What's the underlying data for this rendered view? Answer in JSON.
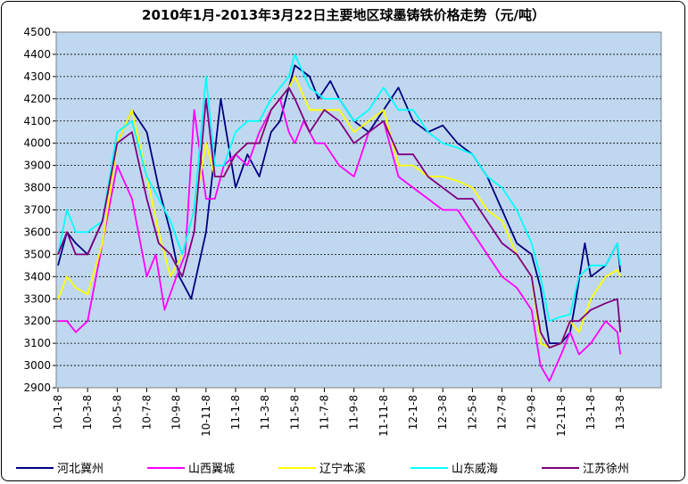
{
  "chart_data": {
    "type": "line",
    "title": "2010年1月-2013年3月22日主要地区球墨铸铁价格走势（元/吨）",
    "ylim": [
      2900,
      4500
    ],
    "yticks": [
      2900,
      3000,
      3100,
      3200,
      3300,
      3400,
      3500,
      3600,
      3700,
      3800,
      3900,
      4000,
      4100,
      4200,
      4300,
      4400,
      4500
    ],
    "xtick_labels": [
      "10-1-8",
      "10-3-8",
      "10-5-8",
      "10-7-8",
      "10-9-8",
      "10-11-8",
      "11-1-8",
      "11-3-8",
      "11-5-8",
      "11-7-8",
      "11-9-8",
      "11-11-8",
      "12-1-8",
      "12-3-8",
      "12-5-8",
      "12-7-8",
      "12-9-8",
      "12-11-8",
      "13-1-8",
      "13-3-8"
    ],
    "grid": true,
    "legend_position": "bottom",
    "background_color": "#c0d8ef",
    "series": [
      {
        "name": "河北冀州",
        "color": "#000080",
        "x": [
          0,
          0.3,
          0.6,
          1.0,
          1.5,
          2.0,
          2.5,
          3.0,
          3.4,
          3.8,
          4.1,
          4.5,
          5.0,
          5.5,
          6.0,
          6.4,
          6.8,
          7.2,
          7.5,
          7.8,
          8.0,
          8.5,
          8.8,
          9.2,
          9.5,
          10.0,
          10.5,
          11.0,
          11.5,
          12.0,
          12.5,
          13.0,
          13.5,
          14.0,
          14.5,
          15.0,
          15.5,
          16.0,
          16.3,
          16.6,
          17.0,
          17.3,
          17.5,
          17.8,
          18.0,
          18.5,
          18.9,
          19.0
        ],
        "values": [
          3450,
          3600,
          3550,
          3500,
          3650,
          4000,
          4150,
          4050,
          3800,
          3600,
          3400,
          3300,
          3600,
          4200,
          3800,
          3950,
          3850,
          4050,
          4100,
          4250,
          4350,
          4300,
          4200,
          4280,
          4200,
          4100,
          4050,
          4150,
          4250,
          4100,
          4050,
          4080,
          4000,
          3950,
          3850,
          3700,
          3550,
          3500,
          3350,
          3100,
          3100,
          3150,
          3300,
          3550,
          3400,
          3450,
          3550,
          3420
        ]
      },
      {
        "name": "山西翼城",
        "color": "#ff00ff",
        "x": [
          0,
          0.3,
          0.6,
          1.0,
          1.5,
          2.0,
          2.5,
          3.0,
          3.3,
          3.6,
          4.0,
          4.3,
          4.6,
          5.0,
          5.3,
          5.6,
          6.0,
          6.4,
          6.8,
          7.2,
          7.5,
          7.8,
          8.0,
          8.3,
          8.7,
          9.0,
          9.5,
          10.0,
          10.5,
          11.0,
          11.5,
          12.0,
          12.5,
          13.0,
          13.5,
          14.0,
          14.5,
          15.0,
          15.5,
          16.0,
          16.3,
          16.6,
          17.0,
          17.3,
          17.6,
          18.0,
          18.5,
          18.9,
          19.0
        ],
        "values": [
          3200,
          3200,
          3150,
          3200,
          3550,
          3900,
          3750,
          3400,
          3500,
          3250,
          3400,
          3500,
          4150,
          3750,
          3750,
          3900,
          3950,
          3900,
          4050,
          4150,
          4200,
          4050,
          4000,
          4100,
          4000,
          4000,
          3900,
          3850,
          4050,
          4100,
          3850,
          3800,
          3750,
          3700,
          3700,
          3600,
          3500,
          3400,
          3350,
          3250,
          3000,
          2930,
          3050,
          3150,
          3050,
          3100,
          3200,
          3150,
          3050
        ]
      },
      {
        "name": "辽宁本溪",
        "color": "#ffff00",
        "x": [
          0,
          0.3,
          0.6,
          1.0,
          1.5,
          2.0,
          2.5,
          3.0,
          3.4,
          3.8,
          4.2,
          4.6,
          5.0,
          5.3,
          5.6,
          6.0,
          6.4,
          6.8,
          7.2,
          7.5,
          7.8,
          8.0,
          8.5,
          9.0,
          9.5,
          10.0,
          10.5,
          11.0,
          11.5,
          12.0,
          12.5,
          13.0,
          13.5,
          14.0,
          14.5,
          15.0,
          15.5,
          16.0,
          16.3,
          16.6,
          17.0,
          17.3,
          17.6,
          18.0,
          18.5,
          18.9,
          19.0
        ],
        "values": [
          3300,
          3400,
          3350,
          3320,
          3550,
          4000,
          4150,
          3850,
          3600,
          3400,
          3500,
          3700,
          4000,
          3850,
          3850,
          3950,
          4000,
          4000,
          4150,
          4200,
          4250,
          4300,
          4150,
          4150,
          4150,
          4050,
          4100,
          4150,
          3900,
          3900,
          3850,
          3850,
          3830,
          3800,
          3700,
          3650,
          3500,
          3400,
          3100,
          3080,
          3100,
          3200,
          3150,
          3300,
          3400,
          3430,
          3400
        ]
      },
      {
        "name": "山东威海",
        "color": "#00ffff",
        "x": [
          0,
          0.3,
          0.6,
          1.0,
          1.5,
          2.0,
          2.5,
          3.0,
          3.4,
          3.8,
          4.2,
          4.6,
          5.0,
          5.3,
          5.6,
          6.0,
          6.4,
          6.8,
          7.2,
          7.5,
          7.8,
          8.0,
          8.5,
          9.0,
          9.5,
          10.0,
          10.5,
          11.0,
          11.5,
          12.0,
          12.5,
          13.0,
          13.5,
          14.0,
          14.5,
          15.0,
          15.5,
          16.0,
          16.3,
          16.6,
          17.0,
          17.3,
          17.6,
          18.0,
          18.5,
          18.9,
          19.0
        ],
        "values": [
          3500,
          3700,
          3600,
          3600,
          3650,
          4050,
          4100,
          3850,
          3750,
          3650,
          3500,
          3700,
          4300,
          3900,
          3900,
          4050,
          4100,
          4100,
          4200,
          4250,
          4300,
          4400,
          4250,
          4200,
          4200,
          4100,
          4150,
          4250,
          4150,
          4150,
          4050,
          4000,
          3980,
          3950,
          3850,
          3800,
          3700,
          3550,
          3400,
          3200,
          3220,
          3230,
          3400,
          3450,
          3450,
          3550,
          3450
        ]
      },
      {
        "name": "江苏徐州",
        "color": "#800080",
        "x": [
          0,
          0.3,
          0.6,
          1.0,
          1.5,
          2.0,
          2.5,
          3.0,
          3.4,
          3.8,
          4.2,
          4.6,
          5.0,
          5.3,
          5.6,
          6.0,
          6.4,
          6.8,
          7.2,
          7.5,
          7.8,
          8.0,
          8.5,
          9.0,
          9.5,
          10.0,
          10.5,
          11.0,
          11.5,
          12.0,
          12.5,
          13.0,
          13.5,
          14.0,
          14.5,
          15.0,
          15.5,
          16.0,
          16.3,
          16.6,
          17.0,
          17.3,
          17.6,
          18.0,
          18.5,
          18.9,
          19.0
        ],
        "values": [
          3500,
          3600,
          3500,
          3500,
          3650,
          4000,
          4050,
          3750,
          3550,
          3500,
          3400,
          3600,
          4200,
          3850,
          3850,
          3950,
          4000,
          4000,
          4150,
          4200,
          4250,
          4200,
          4050,
          4150,
          4100,
          4000,
          4050,
          4100,
          3950,
          3950,
          3850,
          3800,
          3750,
          3750,
          3650,
          3550,
          3500,
          3400,
          3150,
          3080,
          3100,
          3200,
          3200,
          3250,
          3280,
          3300,
          3150
        ]
      }
    ]
  }
}
